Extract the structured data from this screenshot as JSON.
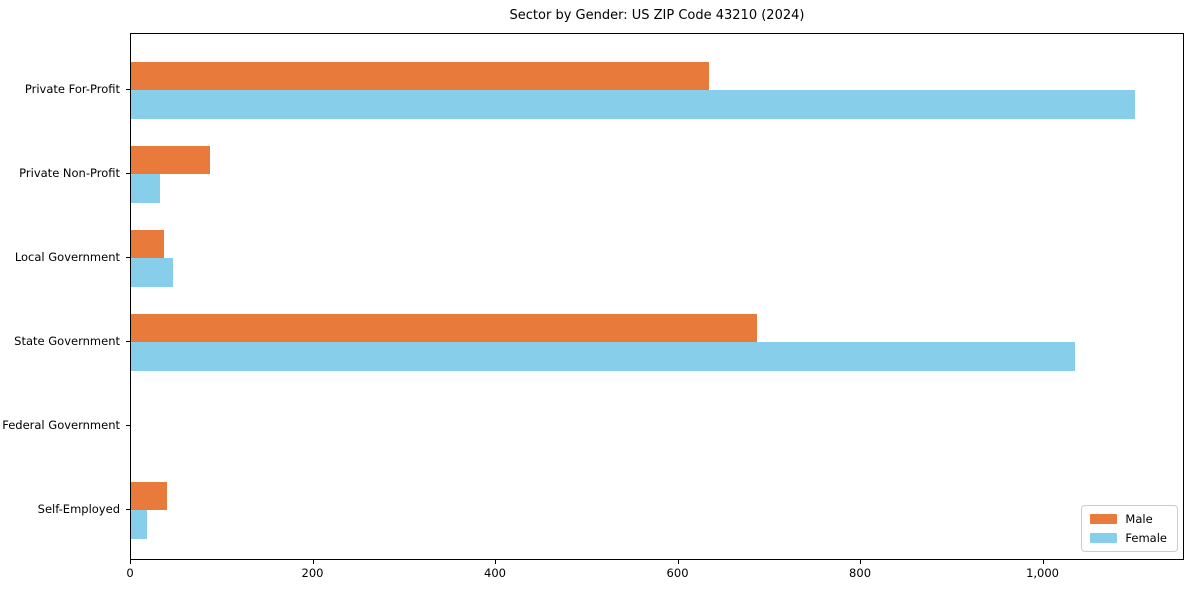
{
  "title": "Sector by Gender: US ZIP Code 43210 (2024)",
  "chart_data": {
    "type": "bar",
    "orientation": "horizontal",
    "title": "Sector by Gender: US ZIP Code 43210 (2024)",
    "categories": [
      "Private For-Profit",
      "Private Non-Profit",
      "Local Government",
      "State Government",
      "Federal Government",
      "Self-Employed"
    ],
    "series": [
      {
        "name": "Male",
        "color": "#e87a3c",
        "values": [
          633,
          87,
          36,
          686,
          0,
          39
        ]
      },
      {
        "name": "Female",
        "color": "#87ceeb",
        "values": [
          1100,
          32,
          46,
          1034,
          0,
          18
        ]
      }
    ],
    "xlabel": "",
    "ylabel": "",
    "xlim": [
      0,
      1155
    ],
    "xticks": {
      "values": [
        0,
        200,
        400,
        600,
        800,
        1000
      ],
      "labels": [
        "0",
        "200",
        "400",
        "600",
        "800",
        "1,000"
      ]
    },
    "legend": {
      "position": "lower right",
      "entries": [
        "Male",
        "Female"
      ]
    },
    "grid": false,
    "background": "#ffffff",
    "axis_color": "#000000"
  }
}
